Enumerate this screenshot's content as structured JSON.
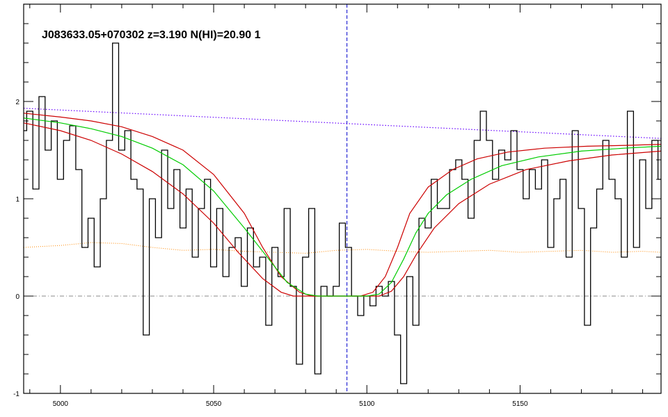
{
  "chart_data": {
    "type": "line",
    "title": "J083633.05+070302 z=3.190 N(HI)=20.90 1",
    "xlabel": "",
    "ylabel": "",
    "xlim": [
      4988,
      5196
    ],
    "ylim": [
      -1.0,
      3.0
    ],
    "x_ticks": [
      5000,
      5050,
      5100,
      5150
    ],
    "x_tick_labels": [
      "5000",
      "5050",
      "5100",
      "5150"
    ],
    "y_ticks": [
      -1,
      0,
      1,
      2
    ],
    "y_tick_labels": [
      "-1",
      "0",
      "1",
      "2"
    ],
    "line_center_x": 5093.5,
    "colors": {
      "flux": "#000000",
      "model": "#00cc00",
      "bounds": "#cc0000",
      "continuum": "#6600ff",
      "error": "#ff8800",
      "zero": "#888888",
      "center": "#0000cc"
    },
    "series": [
      {
        "x": [
          4988,
          4990,
          4992,
          4994,
          4996,
          4998,
          5000,
          5002,
          5004,
          5006,
          5008,
          5010,
          5012,
          5014,
          5016,
          5018,
          5020,
          5022,
          5024,
          5026,
          5028,
          5030,
          5032,
          5034,
          5036,
          5038,
          5040,
          5042,
          5044,
          5046,
          5048,
          5050,
          5052,
          5054,
          5056,
          5058,
          5060,
          5062,
          5064,
          5066,
          5068,
          5070,
          5072,
          5074,
          5076,
          5078,
          5080,
          5082,
          5084,
          5086,
          5088,
          5090,
          5092,
          5094,
          5096,
          5098,
          5100,
          5102,
          5104,
          5106,
          5108,
          5110,
          5112,
          5114,
          5116,
          5118,
          5120,
          5122,
          5124,
          5126,
          5128,
          5130,
          5132,
          5134,
          5136,
          5138,
          5140,
          5142,
          5144,
          5146,
          5148,
          5150,
          5152,
          5154,
          5156,
          5158,
          5160,
          5162,
          5164,
          5166,
          5168,
          5170,
          5172,
          5174,
          5176,
          5178,
          5180,
          5182,
          5184,
          5186,
          5188,
          5190,
          5192,
          5194,
          5196
        ],
        "values": [
          1.7,
          1.9,
          1.1,
          2.05,
          1.5,
          1.8,
          1.2,
          1.6,
          1.75,
          1.3,
          0.5,
          0.8,
          0.3,
          1.0,
          1.6,
          2.6,
          1.5,
          1.7,
          1.2,
          1.1,
          -0.4,
          1.0,
          0.6,
          1.5,
          0.9,
          1.3,
          0.7,
          1.1,
          0.4,
          0.9,
          1.2,
          0.3,
          0.9,
          0.2,
          0.5,
          0.6,
          0.1,
          0.7,
          0.3,
          0.4,
          -0.3,
          0.5,
          0.2,
          0.9,
          0.1,
          -0.7,
          0.4,
          0.9,
          -0.8,
          0.1,
          0.0,
          0.1,
          0.75,
          0.5,
          0.0,
          -0.2,
          0.0,
          -0.1,
          0.1,
          0.0,
          0.15,
          -0.4,
          -0.9,
          0.2,
          -0.3,
          0.8,
          0.7,
          1.2,
          0.9,
          0.9,
          1.3,
          1.4,
          1.2,
          0.8,
          1.6,
          1.9,
          1.6,
          1.2,
          1.5,
          1.4,
          1.7,
          1.3,
          1.0,
          1.3,
          1.1,
          1.4,
          0.5,
          1.0,
          1.2,
          0.4,
          1.7,
          0.9,
          -0.3,
          0.7,
          1.1,
          1.6,
          1.2,
          1.0,
          0.4,
          1.9,
          0.5,
          1.4,
          0.9,
          1.6,
          1.2
        ]
      },
      {
        "x": [
          4988,
          5000,
          5010,
          5020,
          5030,
          5040,
          5050,
          5060,
          5068,
          5074,
          5080,
          5084,
          5090,
          5096,
          5100,
          5104,
          5108,
          5112,
          5116,
          5120,
          5126,
          5134,
          5144,
          5156,
          5170,
          5184,
          5196
        ],
        "values": [
          1.83,
          1.78,
          1.72,
          1.64,
          1.52,
          1.35,
          1.08,
          0.7,
          0.38,
          0.14,
          0.02,
          0.0,
          0.0,
          0.0,
          0.0,
          0.02,
          0.14,
          0.38,
          0.65,
          0.85,
          1.04,
          1.2,
          1.34,
          1.43,
          1.49,
          1.52,
          1.54
        ]
      },
      {
        "x": [
          4988,
          5000,
          5010,
          5020,
          5030,
          5040,
          5050,
          5060,
          5066,
          5072,
          5078,
          5082,
          5090,
          5098,
          5102,
          5106,
          5110,
          5114,
          5120,
          5128,
          5136,
          5146,
          5158,
          5172,
          5186,
          5196
        ],
        "values": [
          1.88,
          1.84,
          1.8,
          1.74,
          1.64,
          1.5,
          1.25,
          0.85,
          0.5,
          0.2,
          0.04,
          0.0,
          0.0,
          0.0,
          0.04,
          0.2,
          0.5,
          0.85,
          1.12,
          1.3,
          1.41,
          1.48,
          1.52,
          1.54,
          1.55,
          1.56
        ]
      },
      {
        "x": [
          4988,
          5000,
          5010,
          5020,
          5030,
          5040,
          5050,
          5058,
          5066,
          5072,
          5076,
          5080,
          5092,
          5098,
          5104,
          5108,
          5112,
          5116,
          5122,
          5130,
          5140,
          5152,
          5166,
          5180,
          5196
        ],
        "values": [
          1.78,
          1.7,
          1.6,
          1.46,
          1.28,
          1.05,
          0.75,
          0.45,
          0.18,
          0.04,
          0.0,
          0.0,
          0.0,
          0.0,
          0.0,
          0.05,
          0.2,
          0.42,
          0.7,
          0.95,
          1.15,
          1.3,
          1.39,
          1.45,
          1.49
        ]
      },
      {
        "x": [
          4988,
          5196
        ],
        "values": [
          1.93,
          1.62
        ]
      },
      {
        "x": [
          4988,
          5000,
          5010,
          5020,
          5030,
          5040,
          5050,
          5060,
          5070,
          5080,
          5090,
          5100,
          5110,
          5120,
          5130,
          5140,
          5150,
          5160,
          5170,
          5180,
          5190,
          5196
        ],
        "values": [
          0.5,
          0.52,
          0.55,
          0.54,
          0.5,
          0.47,
          0.48,
          0.46,
          0.45,
          0.44,
          0.47,
          0.48,
          0.46,
          0.45,
          0.46,
          0.47,
          0.45,
          0.46,
          0.47,
          0.45,
          0.46,
          0.45
        ]
      },
      {
        "x": [
          4988,
          5196
        ],
        "values": [
          0.0,
          0.0
        ]
      }
    ]
  }
}
